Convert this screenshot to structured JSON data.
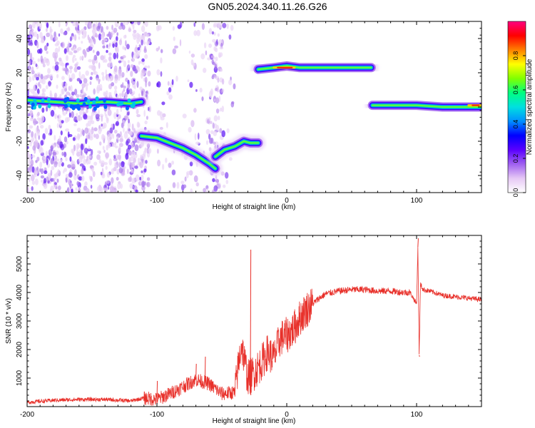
{
  "title": "GN05.2024.340.11.26.G26",
  "chart_data": [
    {
      "type": "heatmap",
      "xlabel": "Height of straight line (km)",
      "ylabel": "Frequency (Hz)",
      "xlim": [
        -200,
        150
      ],
      "ylim": [
        -50,
        50
      ],
      "xticks": [
        -200,
        -100,
        0,
        100
      ],
      "yticks": [
        -40,
        -20,
        0,
        20,
        40
      ],
      "colorbar": {
        "label": "Normalized spectral amplitude",
        "range": [
          0,
          1
        ],
        "ticks": [
          "0.0",
          "0.2",
          "0.4",
          "0.6",
          "0.8"
        ],
        "colors": [
          "#ffffff",
          "#e6c8f5",
          "#a060f0",
          "#5a00ff",
          "#0000ff",
          "#0090ff",
          "#00e0e0",
          "#00ff80",
          "#80ff00",
          "#ffff00",
          "#ff8000",
          "#ff0000",
          "#ff0080"
        ]
      },
      "tracks": [
        {
          "x": [
            -200,
            -180,
            -160,
            -140,
            -120,
            -112
          ],
          "y": [
            4,
            3,
            2,
            3,
            2,
            3
          ],
          "amplitude": 0.55
        },
        {
          "x": [
            -112,
            -100,
            -90,
            -80,
            -70,
            -60,
            -55
          ],
          "y": [
            -17,
            -18,
            -21,
            -24,
            -28,
            -33,
            -36
          ],
          "amplitude": 0.55
        },
        {
          "x": [
            -55,
            -48,
            -40,
            -33,
            -28,
            -22
          ],
          "y": [
            -29,
            -25,
            -23,
            -20,
            -21,
            -21
          ],
          "amplitude": 0.6
        },
        {
          "x": [
            -22,
            -10,
            0,
            10,
            30,
            50,
            65
          ],
          "y": [
            22,
            23,
            24,
            23,
            23,
            23,
            23
          ],
          "amplitude": 0.8
        },
        {
          "x": [
            66,
            80,
            95,
            100,
            120,
            140,
            150
          ],
          "y": [
            1,
            1,
            1,
            1,
            0,
            0,
            0
          ],
          "amplitude": 0.9
        }
      ]
    },
    {
      "type": "line",
      "xlabel": "Height of straight line (km)",
      "ylabel": "SNR (10 * v/v)",
      "xlim": [
        -200,
        150
      ],
      "ylim": [
        0,
        6000
      ],
      "xticks": [
        -200,
        -100,
        0,
        100
      ],
      "yticks": [
        1000,
        2000,
        3000,
        4000,
        5000
      ],
      "series_color": "#e8302a",
      "x": [
        -200,
        -180,
        -160,
        -140,
        -120,
        -110,
        -100,
        -90,
        -80,
        -70,
        -60,
        -50,
        -40,
        -35,
        -30,
        -25,
        -20,
        -15,
        -10,
        -5,
        0,
        5,
        10,
        15,
        20,
        25,
        30,
        40,
        50,
        60,
        70,
        80,
        90,
        95,
        100,
        101,
        102,
        103,
        105,
        110,
        120,
        130,
        140,
        150
      ],
      "y": [
        150,
        220,
        250,
        250,
        200,
        300,
        250,
        450,
        700,
        950,
        800,
        450,
        500,
        2200,
        1000,
        1200,
        1500,
        1900,
        1700,
        2400,
        2500,
        2700,
        3100,
        3400,
        3600,
        3800,
        3950,
        4050,
        4100,
        4100,
        4050,
        4050,
        4000,
        4000,
        3600,
        5600,
        1800,
        4300,
        4100,
        4050,
        3900,
        3850,
        3800,
        3750
      ],
      "spikes": [
        {
          "x": -28,
          "y": 5500
        },
        {
          "x": -28,
          "y": 400
        },
        {
          "x": -100,
          "y": 900
        },
        {
          "x": -70,
          "y": 1500
        },
        {
          "x": -63,
          "y": 1750
        },
        {
          "x": 101,
          "y": 5900
        },
        {
          "x": 102,
          "y": 1750
        }
      ]
    }
  ]
}
